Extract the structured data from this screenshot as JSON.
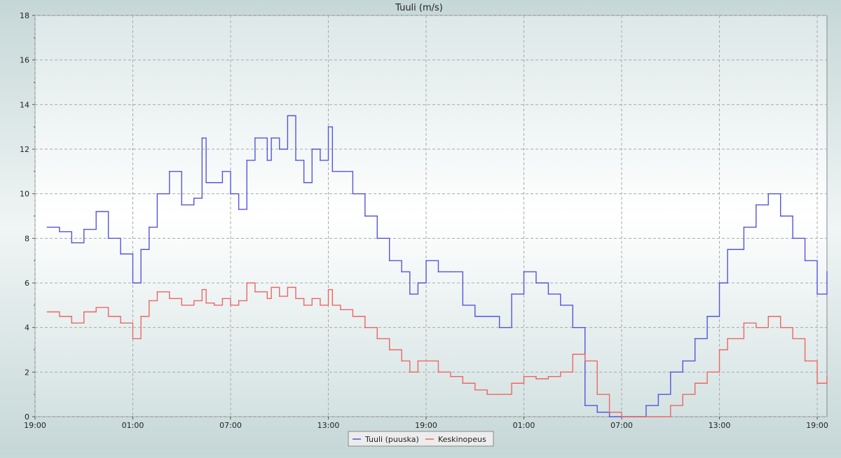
{
  "chart_data": {
    "type": "line",
    "title": "Tuuli (m/s)",
    "xlabel": "",
    "ylabel": "",
    "x_unit": "hours",
    "xlim": [
      0,
      48.6
    ],
    "ylim": [
      0,
      18
    ],
    "y_ticks": [
      0,
      2,
      4,
      6,
      8,
      10,
      12,
      14,
      16,
      18
    ],
    "x_ticks": [
      {
        "x": 0,
        "label": "19:00"
      },
      {
        "x": 6,
        "label": "01:00"
      },
      {
        "x": 12,
        "label": "07:00"
      },
      {
        "x": 18,
        "label": "13:00"
      },
      {
        "x": 24,
        "label": "19:00"
      },
      {
        "x": 30,
        "label": "01:00"
      },
      {
        "x": 36,
        "label": "07:00"
      },
      {
        "x": 42,
        "label": "13:00"
      },
      {
        "x": 48,
        "label": "19:00"
      }
    ],
    "grid": true,
    "legend_position": "bottom-center",
    "series": [
      {
        "name": "Tuuli (puuska)",
        "color": "#5555dd",
        "x": [
          0.75,
          1.5,
          2.25,
          3,
          3.75,
          4.5,
          5.25,
          6,
          6.5,
          7,
          7.5,
          8.25,
          9,
          9.75,
          10.25,
          10.5,
          11,
          11.5,
          12,
          12.5,
          13,
          13.5,
          14.25,
          14.5,
          15,
          15.5,
          16,
          16.5,
          17,
          17.5,
          18,
          18.25,
          18.75,
          19.5,
          20.25,
          21,
          21.75,
          22.5,
          23,
          23.5,
          24,
          24.75,
          25.5,
          26.25,
          27,
          27.75,
          28.5,
          29.25,
          30,
          30.75,
          31.5,
          32.25,
          33,
          33.75,
          34.5,
          35.25,
          36,
          36.75,
          37.5,
          38.25,
          39,
          39.75,
          40.5,
          41.25,
          42,
          42.5,
          43.5,
          44.25,
          45,
          45.75,
          46.5,
          47.25,
          48,
          48.6
        ],
        "y": [
          8.5,
          8.3,
          7.8,
          8.4,
          9.2,
          8.0,
          7.3,
          6.0,
          7.5,
          8.5,
          10.0,
          11.0,
          9.5,
          9.8,
          12.5,
          10.5,
          10.5,
          11.0,
          10.0,
          9.3,
          11.5,
          12.5,
          11.5,
          12.5,
          12.0,
          13.5,
          11.5,
          10.5,
          12.0,
          11.5,
          13.0,
          11.0,
          11.0,
          10.0,
          9.0,
          8.0,
          7.0,
          6.5,
          5.5,
          6.0,
          7.0,
          6.5,
          6.5,
          5.0,
          4.5,
          4.5,
          4.0,
          5.5,
          6.5,
          6.0,
          5.5,
          5.0,
          4.0,
          0.5,
          0.2,
          0.0,
          0.0,
          0.0,
          0.5,
          1.0,
          2.0,
          2.5,
          3.5,
          4.5,
          6.0,
          7.5,
          8.5,
          9.5,
          10.0,
          9.0,
          8.0,
          7.0,
          5.5,
          6.5
        ]
      },
      {
        "name": "Keskinopeus",
        "color": "#ee6666",
        "x": [
          0.75,
          1.5,
          2.25,
          3,
          3.75,
          4.5,
          5.25,
          6,
          6.5,
          7,
          7.5,
          8.25,
          9,
          9.75,
          10.25,
          10.5,
          11,
          11.5,
          12,
          12.5,
          13,
          13.5,
          14.25,
          14.5,
          15,
          15.5,
          16,
          16.5,
          17,
          17.5,
          18,
          18.25,
          18.75,
          19.5,
          20.25,
          21,
          21.75,
          22.5,
          23,
          23.5,
          24,
          24.75,
          25.5,
          26.25,
          27,
          27.75,
          28.5,
          29.25,
          30,
          30.75,
          31.5,
          32.25,
          33,
          33.75,
          34.5,
          35.25,
          36,
          36.75,
          37.5,
          38.25,
          39,
          39.75,
          40.5,
          41.25,
          42,
          42.5,
          43.5,
          44.25,
          45,
          45.75,
          46.5,
          47.25,
          48,
          48.6
        ],
        "y": [
          4.7,
          4.5,
          4.2,
          4.7,
          4.9,
          4.5,
          4.2,
          3.5,
          4.5,
          5.2,
          5.6,
          5.3,
          5.0,
          5.2,
          5.7,
          5.1,
          5.0,
          5.3,
          5.0,
          5.2,
          6.0,
          5.6,
          5.3,
          5.8,
          5.4,
          5.8,
          5.3,
          5.0,
          5.3,
          5.0,
          5.7,
          5.0,
          4.8,
          4.5,
          4.0,
          3.5,
          3.0,
          2.5,
          2.0,
          2.5,
          2.5,
          2.0,
          1.8,
          1.5,
          1.2,
          1.0,
          1.0,
          1.5,
          1.8,
          1.7,
          1.8,
          2.0,
          2.8,
          2.5,
          1.0,
          0.2,
          0.0,
          0.0,
          0.0,
          0.0,
          0.5,
          1.0,
          1.5,
          2.0,
          3.0,
          3.5,
          4.2,
          4.0,
          4.5,
          4.0,
          3.5,
          2.5,
          1.5,
          1.8
        ]
      }
    ]
  }
}
